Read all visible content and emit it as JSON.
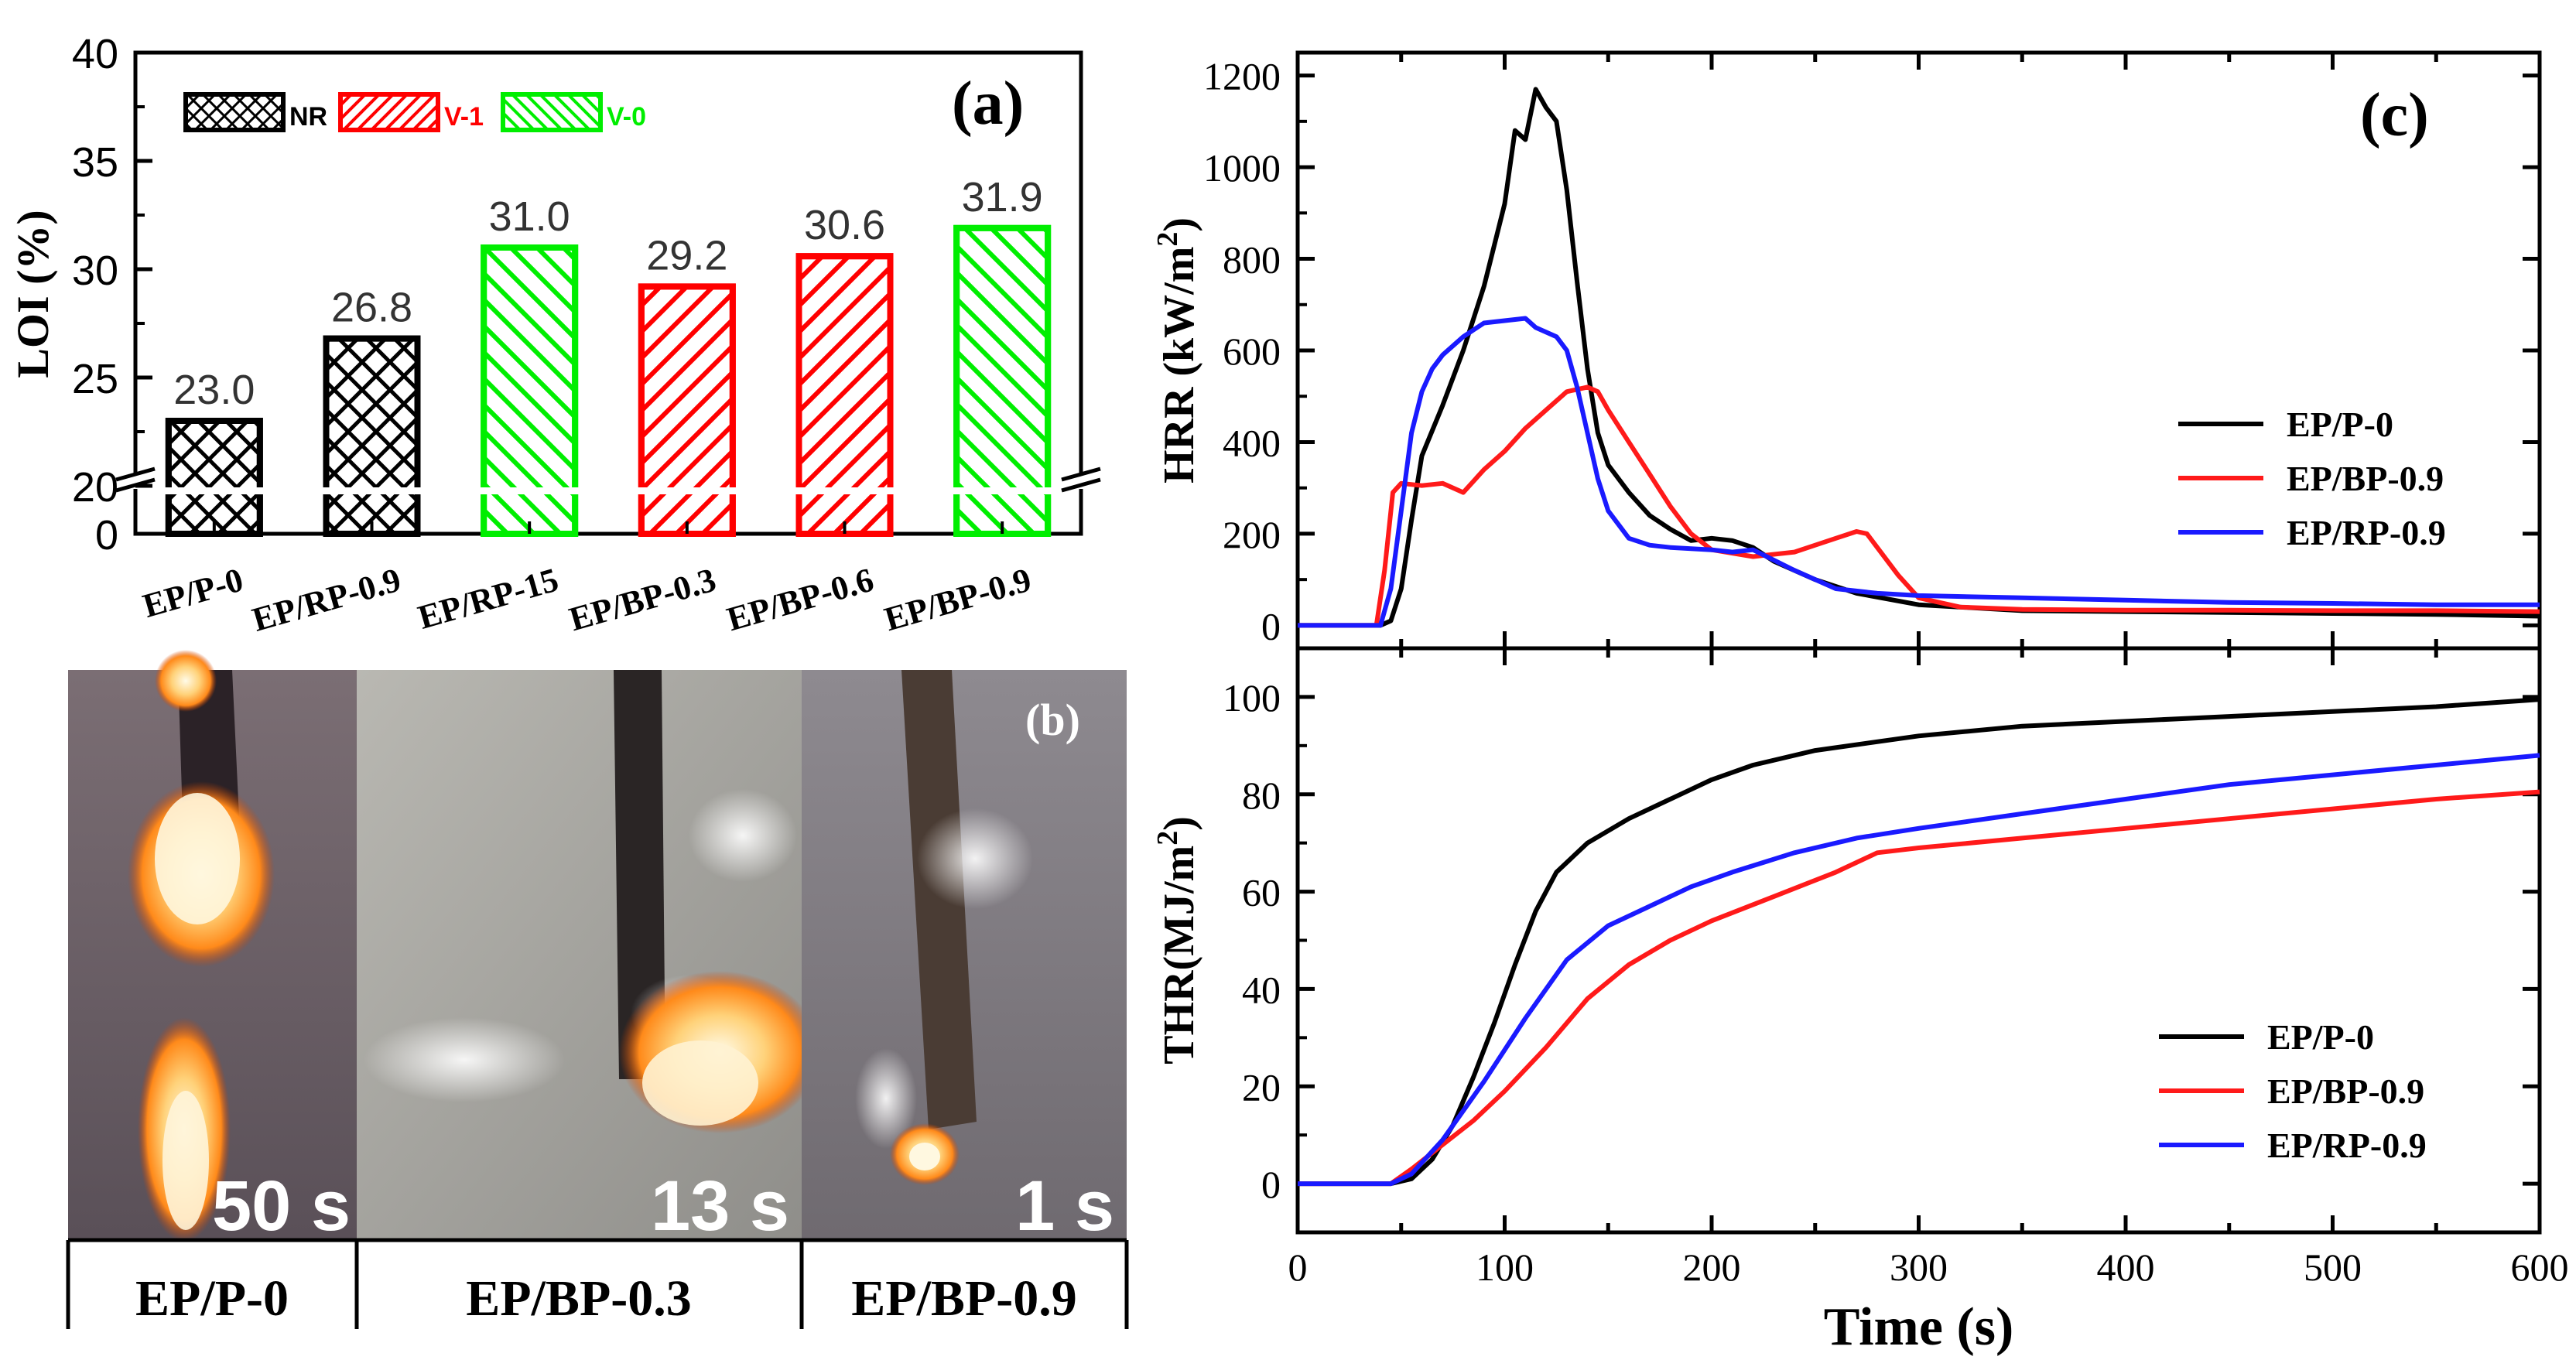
{
  "colors": {
    "nr": "#000000",
    "v1": "#ff0000",
    "v0": "#00ee00",
    "ep_p0": "#000000",
    "ep_bp09": "#ff1a1a",
    "ep_rp09": "#1a1aff"
  },
  "panel_b": {
    "label": "(b)",
    "photos": [
      {
        "time": "50 s",
        "caption": "EP/P-0"
      },
      {
        "time": "13 s",
        "caption": "EP/BP-0.3"
      },
      {
        "time": "1 s",
        "caption": "EP/BP-0.9"
      }
    ]
  },
  "chart_data": [
    {
      "id": "a",
      "type": "bar",
      "panel_label": "(a)",
      "ylabel": "LOI  (%)",
      "yticks": [
        "0",
        "20",
        "25",
        "30",
        "35",
        "40"
      ],
      "ylim_broken": [
        [
          0,
          2
        ],
        [
          20,
          40
        ]
      ],
      "categories": [
        "EP/P-0",
        "EP/RP-0.9",
        "EP/RP-15",
        "EP/BP-0.3",
        "EP/BP-0.6",
        "EP/BP-0.9"
      ],
      "values": [
        23.0,
        26.8,
        31.0,
        29.2,
        30.6,
        31.9
      ],
      "value_labels": [
        "23.0",
        "26.8",
        "31.0",
        "29.2",
        "30.6",
        "31.9"
      ],
      "ratings": [
        "NR",
        "NR",
        "V-0",
        "V-1",
        "V-1",
        "V-0"
      ],
      "legend": [
        {
          "key": "nr",
          "label": "NR"
        },
        {
          "key": "v1",
          "label": "V-1"
        },
        {
          "key": "v0",
          "label": "V-0"
        }
      ]
    },
    {
      "id": "c1",
      "type": "line",
      "panel_label": "(c)",
      "ylabel": "HRR (kW/m",
      "ylabel_sup": "2",
      "ylabel_close": ")",
      "xlim": [
        0,
        600
      ],
      "ylim": [
        -50,
        1250
      ],
      "yticks": [
        0,
        200,
        400,
        600,
        800,
        1000,
        1200
      ],
      "series": [
        {
          "name": "EP/P-0",
          "color_key": "ep_p0",
          "points": [
            [
              0,
              0
            ],
            [
              40,
              0
            ],
            [
              45,
              10
            ],
            [
              50,
              80
            ],
            [
              55,
              230
            ],
            [
              60,
              370
            ],
            [
              70,
              480
            ],
            [
              80,
              600
            ],
            [
              90,
              740
            ],
            [
              100,
              920
            ],
            [
              105,
              1080
            ],
            [
              110,
              1060
            ],
            [
              115,
              1170
            ],
            [
              120,
              1130
            ],
            [
              125,
              1100
            ],
            [
              130,
              950
            ],
            [
              135,
              750
            ],
            [
              140,
              560
            ],
            [
              145,
              420
            ],
            [
              150,
              350
            ],
            [
              160,
              290
            ],
            [
              170,
              240
            ],
            [
              180,
              210
            ],
            [
              190,
              185
            ],
            [
              200,
              190
            ],
            [
              210,
              185
            ],
            [
              220,
              170
            ],
            [
              230,
              140
            ],
            [
              250,
              100
            ],
            [
              270,
              70
            ],
            [
              300,
              45
            ],
            [
              350,
              32
            ],
            [
              400,
              30
            ],
            [
              450,
              28
            ],
            [
              500,
              26
            ],
            [
              550,
              24
            ],
            [
              600,
              20
            ]
          ]
        },
        {
          "name": "EP/BP-0.9",
          "color_key": "ep_bp09",
          "points": [
            [
              0,
              0
            ],
            [
              38,
              0
            ],
            [
              42,
              120
            ],
            [
              46,
              290
            ],
            [
              50,
              310
            ],
            [
              60,
              305
            ],
            [
              70,
              310
            ],
            [
              80,
              290
            ],
            [
              90,
              340
            ],
            [
              100,
              380
            ],
            [
              110,
              430
            ],
            [
              120,
              470
            ],
            [
              130,
              510
            ],
            [
              140,
              520
            ],
            [
              145,
              510
            ],
            [
              150,
              470
            ],
            [
              160,
              400
            ],
            [
              170,
              330
            ],
            [
              180,
              260
            ],
            [
              190,
              200
            ],
            [
              200,
              165
            ],
            [
              220,
              150
            ],
            [
              240,
              160
            ],
            [
              250,
              175
            ],
            [
              260,
              190
            ],
            [
              270,
              205
            ],
            [
              275,
              200
            ],
            [
              280,
              170
            ],
            [
              290,
              110
            ],
            [
              300,
              60
            ],
            [
              320,
              40
            ],
            [
              350,
              35
            ],
            [
              400,
              33
            ],
            [
              450,
              33
            ],
            [
              500,
              32
            ],
            [
              550,
              32
            ],
            [
              600,
              30
            ]
          ]
        },
        {
          "name": "EP/RP-0.9",
          "color_key": "ep_rp09",
          "points": [
            [
              0,
              0
            ],
            [
              40,
              0
            ],
            [
              45,
              80
            ],
            [
              50,
              250
            ],
            [
              55,
              420
            ],
            [
              60,
              510
            ],
            [
              65,
              560
            ],
            [
              70,
              590
            ],
            [
              80,
              630
            ],
            [
              90,
              660
            ],
            [
              100,
              665
            ],
            [
              110,
              670
            ],
            [
              115,
              650
            ],
            [
              125,
              630
            ],
            [
              130,
              600
            ],
            [
              135,
              520
            ],
            [
              140,
              420
            ],
            [
              145,
              320
            ],
            [
              150,
              250
            ],
            [
              160,
              190
            ],
            [
              170,
              175
            ],
            [
              180,
              170
            ],
            [
              200,
              165
            ],
            [
              210,
              160
            ],
            [
              220,
              165
            ],
            [
              240,
              120
            ],
            [
              260,
              80
            ],
            [
              280,
              70
            ],
            [
              300,
              65
            ],
            [
              350,
              60
            ],
            [
              400,
              55
            ],
            [
              450,
              50
            ],
            [
              500,
              48
            ],
            [
              550,
              45
            ],
            [
              600,
              45
            ]
          ]
        }
      ]
    },
    {
      "id": "c2",
      "type": "line",
      "ylabel": "THR(MJ/m",
      "ylabel_sup": "2",
      "ylabel_close": ")",
      "xlabel": "Time (s)",
      "xlim": [
        0,
        600
      ],
      "ylim": [
        -10,
        110
      ],
      "xticks": [
        0,
        100,
        200,
        300,
        400,
        500,
        600
      ],
      "yticks": [
        0,
        20,
        40,
        60,
        80,
        100
      ],
      "series": [
        {
          "name": "EP/P-0",
          "color_key": "ep_p0",
          "points": [
            [
              0,
              0
            ],
            [
              45,
              0
            ],
            [
              55,
              1
            ],
            [
              65,
              5
            ],
            [
              75,
              12
            ],
            [
              85,
              22
            ],
            [
              95,
              33
            ],
            [
              105,
              45
            ],
            [
              115,
              56
            ],
            [
              125,
              64
            ],
            [
              140,
              70
            ],
            [
              160,
              75
            ],
            [
              180,
              79
            ],
            [
              200,
              83
            ],
            [
              220,
              86
            ],
            [
              250,
              89
            ],
            [
              300,
              92
            ],
            [
              350,
              94
            ],
            [
              400,
              95
            ],
            [
              450,
              96
            ],
            [
              500,
              97
            ],
            [
              550,
              98
            ],
            [
              600,
              99.5
            ]
          ]
        },
        {
          "name": "EP/BP-0.9",
          "color_key": "ep_bp09",
          "points": [
            [
              0,
              0
            ],
            [
              45,
              0
            ],
            [
              55,
              3
            ],
            [
              70,
              8
            ],
            [
              85,
              13
            ],
            [
              100,
              19
            ],
            [
              120,
              28
            ],
            [
              140,
              38
            ],
            [
              160,
              45
            ],
            [
              180,
              50
            ],
            [
              200,
              54
            ],
            [
              230,
              59
            ],
            [
              260,
              64
            ],
            [
              280,
              68
            ],
            [
              300,
              69
            ],
            [
              350,
              71
            ],
            [
              400,
              73
            ],
            [
              450,
              75
            ],
            [
              500,
              77
            ],
            [
              550,
              79
            ],
            [
              600,
              80.5
            ]
          ]
        },
        {
          "name": "EP/RP-0.9",
          "color_key": "ep_rp09",
          "points": [
            [
              0,
              0
            ],
            [
              45,
              0
            ],
            [
              55,
              2
            ],
            [
              70,
              9
            ],
            [
              90,
              21
            ],
            [
              110,
              34
            ],
            [
              130,
              46
            ],
            [
              150,
              53
            ],
            [
              170,
              57
            ],
            [
              190,
              61
            ],
            [
              210,
              64
            ],
            [
              240,
              68
            ],
            [
              270,
              71
            ],
            [
              300,
              73
            ],
            [
              350,
              76
            ],
            [
              400,
              79
            ],
            [
              450,
              82
            ],
            [
              500,
              84
            ],
            [
              550,
              86
            ],
            [
              600,
              88
            ]
          ]
        }
      ]
    }
  ]
}
